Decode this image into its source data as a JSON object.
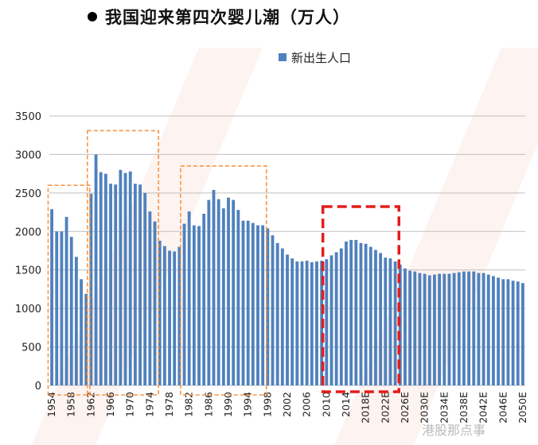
{
  "heading": "我国迎来第四次婴儿潮（万人）",
  "watermark": "港股那点事",
  "colors": {
    "bar": "#4f81bd",
    "grid": "#bfbfbf",
    "orange_box": "#f79646",
    "red_box": "#e31c1c",
    "background_stripe": "#fbe9e4"
  },
  "chart_data": {
    "type": "bar",
    "legend": [
      "新出生人口"
    ],
    "legend_position": "top-right",
    "ylim": [
      0,
      3500
    ],
    "yticks": [
      0,
      500,
      1000,
      1500,
      2000,
      2500,
      3000,
      3500
    ],
    "grid": true,
    "categories": [
      "1954",
      "1955",
      "1956",
      "1957",
      "1958",
      "1959",
      "1960",
      "1961",
      "1962",
      "1963",
      "1964",
      "1965",
      "1966",
      "1967",
      "1968",
      "1969",
      "1970",
      "1971",
      "1972",
      "1973",
      "1974",
      "1975",
      "1976",
      "1977",
      "1978",
      "1979",
      "1980",
      "1981",
      "1982",
      "1983",
      "1984",
      "1985",
      "1986",
      "1987",
      "1988",
      "1989",
      "1990",
      "1991",
      "1992",
      "1993",
      "1994",
      "1995",
      "1996",
      "1997",
      "1998",
      "1999",
      "2000",
      "2001",
      "2002",
      "2003",
      "2004",
      "2005",
      "2006",
      "2007",
      "2008",
      "2009",
      "2010",
      "2011",
      "2012",
      "2013",
      "2014",
      "2015",
      "2016E",
      "2017E",
      "2018E",
      "2019E",
      "2020E",
      "2021E",
      "2022E",
      "2023E",
      "2024E",
      "2025E",
      "2026E",
      "2027E",
      "2028E",
      "2029E",
      "2030E",
      "2031E",
      "2032E",
      "2033E",
      "2034E",
      "2035E",
      "2036E",
      "2037E",
      "2038E",
      "2039E",
      "2040E",
      "2041E",
      "2042E",
      "2043E",
      "2044E",
      "2045E",
      "2046E",
      "2047E",
      "2048E",
      "2049E",
      "2050E"
    ],
    "xtick_labels": [
      "1954",
      "1958",
      "1962",
      "1966",
      "1970",
      "1974",
      "1978",
      "1982",
      "1986",
      "1990",
      "1994",
      "1998",
      "2002",
      "2006",
      "2010",
      "2014",
      "2018E",
      "2022E",
      "2026E",
      "2030E",
      "2034E",
      "2038E",
      "2042E",
      "2046E",
      "2050E"
    ],
    "series": [
      {
        "name": "新出生人口",
        "values": [
          2290,
          2000,
          2000,
          2190,
          1930,
          1670,
          1380,
          1190,
          2490,
          3000,
          2770,
          2750,
          2620,
          2610,
          2800,
          2760,
          2780,
          2620,
          2610,
          2500,
          2260,
          2130,
          1880,
          1810,
          1750,
          1740,
          1800,
          2100,
          2260,
          2080,
          2070,
          2230,
          2410,
          2540,
          2420,
          2300,
          2440,
          2410,
          2280,
          2140,
          2140,
          2110,
          2080,
          2080,
          2040,
          1950,
          1850,
          1780,
          1700,
          1650,
          1610,
          1610,
          1620,
          1600,
          1610,
          1620,
          1640,
          1690,
          1730,
          1780,
          1870,
          1890,
          1890,
          1850,
          1840,
          1800,
          1760,
          1720,
          1660,
          1650,
          1610,
          1570,
          1520,
          1490,
          1480,
          1460,
          1450,
          1430,
          1440,
          1450,
          1450,
          1450,
          1460,
          1470,
          1480,
          1480,
          1480,
          1460,
          1460,
          1440,
          1420,
          1400,
          1380,
          1380,
          1360,
          1350,
          1330
        ]
      }
    ],
    "highlight_ranges": [
      {
        "from": "1954",
        "to": "1961",
        "style": "orange-dashed"
      },
      {
        "from": "1962",
        "to": "1975",
        "style": "orange-dashed"
      },
      {
        "from": "1981",
        "to": "1997",
        "style": "orange-dashed"
      },
      {
        "from": "2010",
        "to": "2024E",
        "style": "red-dashed"
      }
    ]
  }
}
